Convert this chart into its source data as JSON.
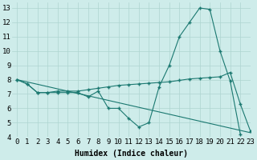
{
  "xlabel": "Humidex (Indice chaleur)",
  "bg_color": "#ceecea",
  "grid_color": "#aed4d0",
  "line_color": "#1a7870",
  "xlim": [
    -0.5,
    23
  ],
  "ylim": [
    4,
    13.4
  ],
  "xticks": [
    0,
    1,
    2,
    3,
    4,
    5,
    6,
    7,
    8,
    9,
    10,
    11,
    12,
    13,
    14,
    15,
    16,
    17,
    18,
    19,
    20,
    21,
    22,
    23
  ],
  "yticks": [
    4,
    5,
    6,
    7,
    8,
    9,
    10,
    11,
    12,
    13
  ],
  "series1_x": [
    0,
    1,
    2,
    3,
    4,
    5,
    6,
    7,
    8,
    9,
    10,
    11,
    12,
    13,
    14,
    15,
    16,
    17,
    18,
    19,
    20,
    21,
    22
  ],
  "series1_y": [
    8.0,
    7.7,
    7.1,
    7.1,
    7.1,
    7.1,
    7.1,
    6.8,
    7.2,
    6.0,
    6.0,
    5.3,
    4.7,
    5.0,
    7.5,
    9.0,
    11.0,
    12.0,
    13.0,
    12.9,
    10.0,
    7.9,
    4.2
  ],
  "series2_x": [
    0,
    1,
    2,
    3,
    4,
    5,
    6,
    7,
    8,
    9,
    10,
    11,
    12,
    13,
    14,
    15,
    16,
    17,
    18,
    19,
    20,
    21,
    22,
    23
  ],
  "series2_y": [
    8.0,
    7.7,
    7.1,
    7.1,
    7.2,
    7.2,
    7.2,
    7.3,
    7.4,
    7.5,
    7.6,
    7.65,
    7.7,
    7.75,
    7.8,
    7.85,
    7.95,
    8.05,
    8.1,
    8.15,
    8.2,
    8.5,
    6.3,
    4.4
  ],
  "series3_x": [
    0,
    23
  ],
  "series3_y": [
    8.0,
    4.3
  ],
  "font_size_label": 7,
  "font_size_tick": 6.5
}
